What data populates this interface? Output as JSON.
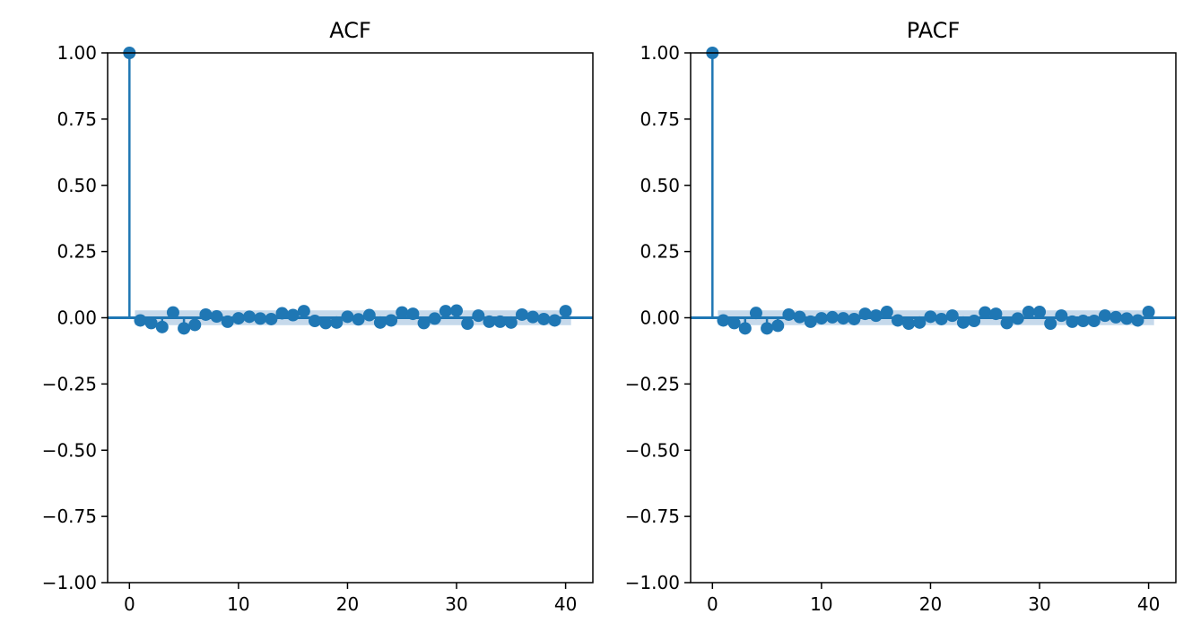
{
  "chart_data": [
    {
      "type": "stem",
      "title": "ACF",
      "xlabel": "",
      "ylabel": "",
      "xlim": [
        -2,
        42.5
      ],
      "ylim": [
        -1,
        1
      ],
      "xticks": [
        0,
        10,
        20,
        30,
        40
      ],
      "xtick_labels": [
        "0",
        "10",
        "20",
        "30",
        "40"
      ],
      "yticks": [
        1,
        0.75,
        0.5,
        0.25,
        0,
        -0.25,
        -0.5,
        -0.75,
        -1
      ],
      "ytick_labels": [
        "1.00",
        "0.75",
        "0.50",
        "0.25",
        "0.00",
        "−0.25",
        "−0.50",
        "−0.75",
        "−1.00"
      ],
      "confidence_band": 0.028,
      "grid": false,
      "lags": [
        0,
        1,
        2,
        3,
        4,
        5,
        6,
        7,
        8,
        9,
        10,
        11,
        12,
        13,
        14,
        15,
        16,
        17,
        18,
        19,
        20,
        21,
        22,
        23,
        24,
        25,
        26,
        27,
        28,
        29,
        30,
        31,
        32,
        33,
        34,
        35,
        36,
        37,
        38,
        39,
        40
      ],
      "values": [
        1.0,
        -0.01,
        -0.02,
        -0.035,
        0.02,
        -0.04,
        -0.027,
        0.012,
        0.005,
        -0.015,
        -0.002,
        0.004,
        -0.003,
        -0.005,
        0.017,
        0.01,
        0.025,
        -0.012,
        -0.02,
        -0.018,
        0.004,
        -0.006,
        0.01,
        -0.018,
        -0.01,
        0.02,
        0.015,
        -0.02,
        -0.003,
        0.025,
        0.027,
        -0.022,
        0.008,
        -0.015,
        -0.015,
        -0.018,
        0.012,
        0.003,
        -0.005,
        -0.01,
        0.025
      ]
    },
    {
      "type": "stem",
      "title": "PACF",
      "xlabel": "",
      "ylabel": "",
      "xlim": [
        -2,
        42.5
      ],
      "ylim": [
        -1,
        1
      ],
      "xticks": [
        0,
        10,
        20,
        30,
        40
      ],
      "xtick_labels": [
        "0",
        "10",
        "20",
        "30",
        "40"
      ],
      "yticks": [
        1,
        0.75,
        0.5,
        0.25,
        0,
        -0.25,
        -0.5,
        -0.75,
        -1
      ],
      "ytick_labels": [
        "1.00",
        "0.75",
        "0.50",
        "0.25",
        "0.00",
        "−0.25",
        "−0.50",
        "−0.75",
        "−1.00"
      ],
      "confidence_band": 0.028,
      "grid": false,
      "lags": [
        0,
        1,
        2,
        3,
        4,
        5,
        6,
        7,
        8,
        9,
        10,
        11,
        12,
        13,
        14,
        15,
        16,
        17,
        18,
        19,
        20,
        21,
        22,
        23,
        24,
        25,
        26,
        27,
        28,
        29,
        30,
        31,
        32,
        33,
        34,
        35,
        36,
        37,
        38,
        39,
        40
      ],
      "values": [
        1.0,
        -0.01,
        -0.02,
        -0.04,
        0.018,
        -0.04,
        -0.03,
        0.012,
        0.003,
        -0.015,
        -0.002,
        0.002,
        -0.002,
        -0.005,
        0.015,
        0.008,
        0.022,
        -0.01,
        -0.022,
        -0.018,
        0.004,
        -0.005,
        0.008,
        -0.018,
        -0.012,
        0.02,
        0.015,
        -0.02,
        -0.003,
        0.022,
        0.022,
        -0.022,
        0.008,
        -0.015,
        -0.012,
        -0.012,
        0.008,
        0.002,
        -0.003,
        -0.01,
        0.022
      ]
    }
  ],
  "colors": {
    "series": "#1f77b4",
    "band": "#b8d0e6",
    "axis": "#000000"
  }
}
